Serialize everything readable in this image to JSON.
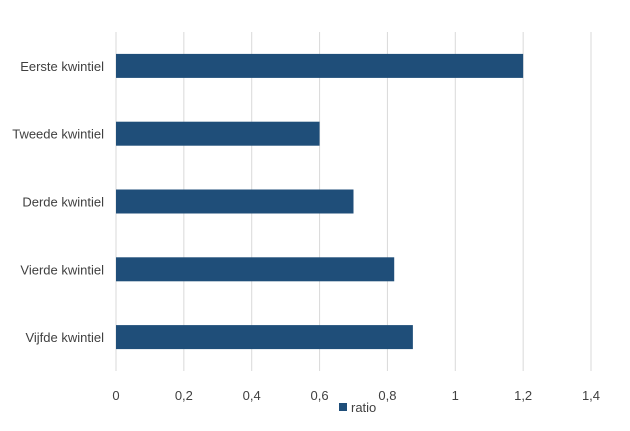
{
  "chart_data": {
    "type": "bar",
    "orientation": "horizontal",
    "categories": [
      "Eerste kwintiel",
      "Tweede kwintiel",
      "Derde kwintiel",
      "Vierde kwintiel",
      "Vijfde kwintiel"
    ],
    "series": [
      {
        "name": "ratio",
        "values": [
          1.2,
          0.6,
          0.7,
          0.82,
          0.875
        ],
        "color": "#1f4e79"
      }
    ],
    "xlim": [
      0,
      1.4
    ],
    "xticks": [
      "0",
      "0,2",
      "0,4",
      "0,6",
      "0,8",
      "1",
      "1,2",
      "1,4"
    ],
    "grid": true,
    "legend": "bottom"
  }
}
